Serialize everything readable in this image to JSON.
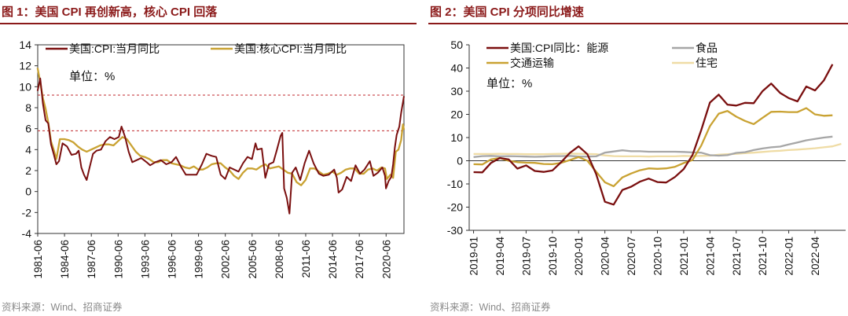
{
  "chart_data": [
    {
      "type": "line",
      "title": "图 1：美国 CPI 再创新高，核心 CPI 回落",
      "source": "资料来源：Wind、招商证券",
      "unit_label": "单位：%",
      "ylim": [
        -4,
        14
      ],
      "yticks": [
        -4,
        -2,
        0,
        2,
        4,
        6,
        8,
        10,
        12,
        14
      ],
      "xlim": [
        1981.417,
        2022.417
      ],
      "xtick_labels": [
        "1981-06",
        "1984-06",
        "1987-06",
        "1990-06",
        "1993-06",
        "1996-06",
        "1999-06",
        "2002-06",
        "2005-06",
        "2008-06",
        "2011-06",
        "2014-06",
        "2017-06",
        "2020-06"
      ],
      "xtick_values": [
        1981.417,
        1984.417,
        1987.417,
        1990.417,
        1993.417,
        1996.417,
        1999.417,
        2002.417,
        2005.417,
        2008.417,
        2011.417,
        2014.417,
        2017.417,
        2020.417
      ],
      "reference_lines": [
        9.2,
        5.8
      ],
      "colors": {
        "cpi": "#7a0f0f",
        "core": "#c9a232",
        "ref": "#c0272d"
      },
      "series": [
        {
          "name": "美国:CPI:当月同比",
          "x": [
            1981.4,
            1981.7,
            1982.0,
            1982.3,
            1982.6,
            1982.9,
            1983.2,
            1983.5,
            1983.8,
            1984.2,
            1984.7,
            1985.2,
            1985.7,
            1986.0,
            1986.3,
            1986.6,
            1986.9,
            1987.2,
            1987.6,
            1988.0,
            1988.5,
            1989.0,
            1989.5,
            1990.0,
            1990.5,
            1990.8,
            1991.2,
            1991.6,
            1992.0,
            1992.5,
            1993.0,
            1993.6,
            1994.0,
            1994.6,
            1995.2,
            1995.8,
            1996.4,
            1996.9,
            1997.5,
            1998.0,
            1998.6,
            1999.2,
            1999.8,
            2000.3,
            2000.9,
            2001.4,
            2001.9,
            2002.4,
            2002.9,
            2003.4,
            2003.9,
            2004.4,
            2004.9,
            2005.4,
            2005.8,
            2006.0,
            2006.5,
            2006.9,
            2007.3,
            2007.8,
            2008.2,
            2008.6,
            2008.8,
            2009.0,
            2009.3,
            2009.6,
            2009.9,
            2010.3,
            2010.8,
            2011.3,
            2011.8,
            2012.3,
            2012.9,
            2013.4,
            2014.0,
            2014.6,
            2014.9,
            2015.1,
            2015.5,
            2016.0,
            2016.5,
            2017.0,
            2017.5,
            2018.0,
            2018.6,
            2019.0,
            2019.5,
            2020.0,
            2020.3,
            2020.4,
            2020.7,
            2021.0,
            2021.2,
            2021.4,
            2021.6,
            2021.9,
            2022.1,
            2022.3,
            2022.42
          ],
          "values": [
            9.6,
            10.8,
            8.4,
            6.8,
            6.5,
            4.5,
            3.6,
            2.6,
            2.9,
            4.6,
            4.3,
            3.5,
            3.6,
            3.9,
            2.3,
            1.6,
            1.1,
            2.2,
            3.6,
            3.9,
            4.0,
            4.8,
            5.2,
            5.0,
            5.2,
            6.2,
            5.2,
            3.8,
            2.8,
            3.0,
            3.2,
            2.8,
            2.5,
            2.8,
            3.0,
            2.6,
            2.8,
            3.3,
            2.3,
            1.6,
            1.6,
            1.6,
            2.6,
            3.6,
            3.4,
            3.3,
            1.6,
            1.2,
            2.3,
            2.1,
            1.9,
            2.7,
            3.3,
            3.1,
            4.6,
            4.0,
            4.1,
            1.3,
            2.6,
            2.8,
            4.0,
            5.3,
            5.6,
            0.3,
            -0.6,
            -2.1,
            1.8,
            2.3,
            1.1,
            2.7,
            3.9,
            2.7,
            1.7,
            1.5,
            1.6,
            2.1,
            1.3,
            -0.1,
            0.2,
            1.4,
            1.0,
            2.5,
            1.7,
            2.1,
            2.9,
            1.5,
            1.8,
            2.3,
            1.5,
            0.3,
            1.0,
            1.4,
            2.6,
            4.2,
            5.4,
            6.2,
            7.5,
            8.5,
            9.1
          ]
        },
        {
          "name": "美国:核心CPI:当月同比",
          "x": [
            1981.4,
            1981.7,
            1982.0,
            1982.3,
            1982.6,
            1982.9,
            1983.2,
            1983.5,
            1983.9,
            1984.4,
            1984.9,
            1985.4,
            1985.9,
            1986.4,
            1986.9,
            1987.4,
            1987.9,
            1988.4,
            1988.9,
            1989.4,
            1989.9,
            1990.4,
            1990.9,
            1991.4,
            1991.9,
            1992.4,
            1992.9,
            1993.4,
            1993.9,
            1994.4,
            1994.9,
            1995.4,
            1995.9,
            1996.4,
            1996.9,
            1997.4,
            1997.9,
            1998.4,
            1998.9,
            1999.4,
            1999.9,
            2000.4,
            2000.9,
            2001.4,
            2001.9,
            2002.4,
            2002.9,
            2003.4,
            2003.9,
            2004.4,
            2004.9,
            2005.4,
            2005.9,
            2006.4,
            2006.9,
            2007.4,
            2007.9,
            2008.4,
            2008.9,
            2009.4,
            2009.9,
            2010.4,
            2010.9,
            2011.4,
            2011.9,
            2012.4,
            2012.9,
            2013.4,
            2013.9,
            2014.4,
            2014.9,
            2015.4,
            2015.9,
            2016.4,
            2016.9,
            2017.4,
            2017.9,
            2018.4,
            2018.9,
            2019.4,
            2019.9,
            2020.3,
            2020.5,
            2020.9,
            2021.2,
            2021.5,
            2021.8,
            2022.1,
            2022.3,
            2022.42
          ],
          "values": [
            11.8,
            10.4,
            8.9,
            7.9,
            6.6,
            4.8,
            4.0,
            3.1,
            5.0,
            5.0,
            4.9,
            4.7,
            4.3,
            4.0,
            3.8,
            4.0,
            4.2,
            4.4,
            4.5,
            4.5,
            4.4,
            4.8,
            5.2,
            5.0,
            4.4,
            3.8,
            3.4,
            3.3,
            3.1,
            2.8,
            2.8,
            3.0,
            3.0,
            2.7,
            2.6,
            2.5,
            2.3,
            2.2,
            2.4,
            2.1,
            2.1,
            2.3,
            2.6,
            2.7,
            2.7,
            2.3,
            2.0,
            1.5,
            1.2,
            1.8,
            2.2,
            2.2,
            2.1,
            2.4,
            2.6,
            2.2,
            2.3,
            2.4,
            2.1,
            1.8,
            1.7,
            0.9,
            0.6,
            1.1,
            2.2,
            2.2,
            1.9,
            1.6,
            1.7,
            1.9,
            1.6,
            1.8,
            2.1,
            2.2,
            2.2,
            1.7,
            1.7,
            2.1,
            2.2,
            2.0,
            2.3,
            2.2,
            1.2,
            1.6,
            1.3,
            3.8,
            4.0,
            4.9,
            6.4,
            5.9
          ]
        }
      ]
    },
    {
      "type": "line",
      "title": "图 2：美国 CPI 分项同比增速",
      "source": "资料来源：Wind、招商证券",
      "unit_label": "单位：%",
      "ylim": [
        -30,
        50
      ],
      "yticks": [
        -30,
        -20,
        -10,
        0,
        10,
        20,
        30,
        40,
        50
      ],
      "x_count": 43,
      "xtick_labels": [
        "2019-01",
        "2019-04",
        "2019-07",
        "2019-10",
        "2020-01",
        "2020-04",
        "2020-07",
        "2020-10",
        "2021-01",
        "2021-04",
        "2021-07",
        "2021-10",
        "2022-01",
        "2022-04"
      ],
      "xtick_index": [
        0,
        3,
        6,
        9,
        12,
        15,
        18,
        21,
        24,
        27,
        30,
        33,
        36,
        39
      ],
      "colors": {
        "energy": "#7a0f0f",
        "food": "#a6a6a6",
        "transport": "#c9a232",
        "housing": "#efdca5"
      },
      "series": [
        {
          "name": "美国:CPI同比：能源",
          "values": [
            -4.9,
            -5.0,
            -0.9,
            1.2,
            0.6,
            -3.4,
            -2.0,
            -4.4,
            -4.8,
            -4.2,
            -0.6,
            3.4,
            6.2,
            2.8,
            -5.7,
            -17.7,
            -18.9,
            -12.6,
            -11.2,
            -9.0,
            -7.7,
            -9.2,
            -9.4,
            -7.0,
            -3.6,
            2.4,
            13.2,
            25.1,
            28.5,
            24.2,
            23.8,
            25.0,
            24.8,
            30.0,
            33.3,
            29.3,
            27.0,
            25.6,
            32.0,
            30.3,
            34.6,
            41.6,
            null
          ]
        },
        {
          "name": "食品",
          "values": [
            1.6,
            2.0,
            2.1,
            1.9,
            2.0,
            1.9,
            1.8,
            1.7,
            1.8,
            2.0,
            2.0,
            2.1,
            1.8,
            1.8,
            1.9,
            3.5,
            4.0,
            4.5,
            4.1,
            4.1,
            3.9,
            3.9,
            3.9,
            3.9,
            3.8,
            3.6,
            3.5,
            2.4,
            2.2,
            2.4,
            3.4,
            3.7,
            4.6,
            5.3,
            5.8,
            6.1,
            7.0,
            7.9,
            8.8,
            9.4,
            10.0,
            10.4,
            null
          ]
        },
        {
          "name": "交通运输",
          "values": [
            -1.5,
            -1.6,
            0.6,
            1.2,
            0.0,
            -0.6,
            -0.8,
            -0.9,
            -1.4,
            -1.5,
            -0.9,
            0.3,
            1.6,
            0.0,
            -4.7,
            -9.3,
            -11.0,
            -7.2,
            -5.5,
            -4.1,
            -3.3,
            -3.5,
            -3.3,
            -2.6,
            -1.0,
            0.3,
            6.5,
            14.9,
            20.3,
            21.5,
            19.0,
            17.2,
            15.8,
            18.5,
            21.1,
            21.2,
            21.0,
            21.0,
            22.7,
            20.0,
            19.4,
            19.6,
            null
          ]
        },
        {
          "name": "住宅",
          "values": [
            2.9,
            2.9,
            2.9,
            3.0,
            2.9,
            2.9,
            2.8,
            2.8,
            2.8,
            2.9,
            3.0,
            3.1,
            3.0,
            2.9,
            2.8,
            2.3,
            2.0,
            1.9,
            1.9,
            1.9,
            1.8,
            1.9,
            1.9,
            1.9,
            2.1,
            2.0,
            2.1,
            2.2,
            2.6,
            2.8,
            3.0,
            3.3,
            3.5,
            3.8,
            4.1,
            4.3,
            4.6,
            4.8,
            5.1,
            5.4,
            5.8,
            6.2,
            7.3
          ]
        }
      ]
    }
  ]
}
